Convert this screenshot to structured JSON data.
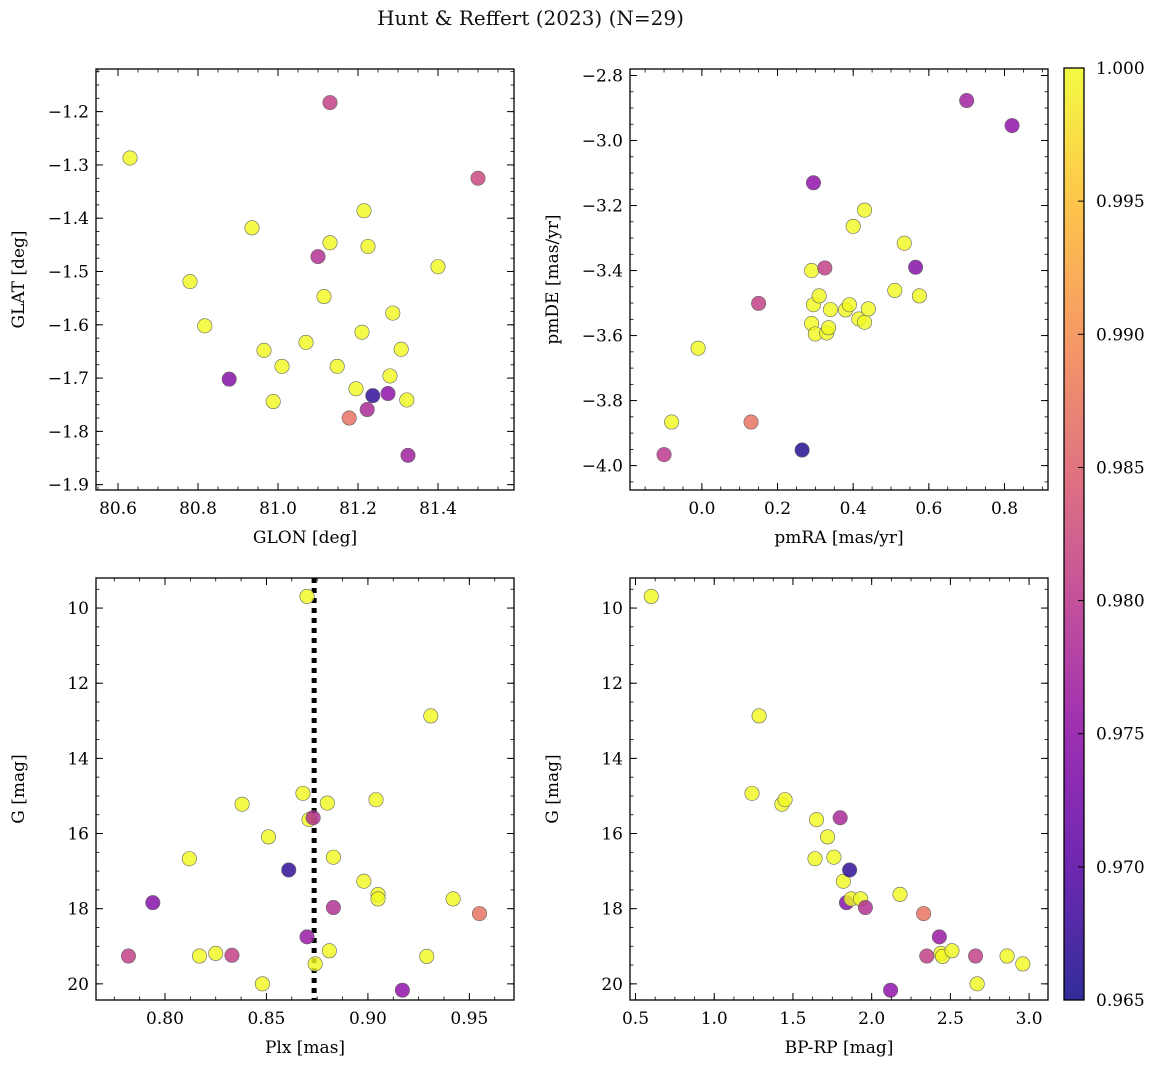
{
  "title": "Hunt & Reffert (2023) (N=29)",
  "colorbar": {
    "range": [
      0.965,
      1.0
    ],
    "ticks": [
      "0.965",
      "0.970",
      "0.975",
      "0.980",
      "0.985",
      "0.990",
      "0.995",
      "1.000"
    ],
    "colormap": "plasma"
  },
  "chart_data": [
    {
      "type": "scatter",
      "xlabel": "GLON [deg]",
      "ylabel": "GLAT [deg]",
      "xlim": [
        80.545,
        81.59
      ],
      "ylim": [
        -1.91,
        -1.12
      ],
      "xticks": [
        "80.6",
        "80.8",
        "81.0",
        "81.2",
        "81.4"
      ],
      "yticks": [
        "-1.2",
        "-1.3",
        "-1.4",
        "-1.5",
        "-1.6",
        "-1.7",
        "-1.8",
        "-1.9"
      ],
      "points": [
        [
          80.63,
          -1.287,
          1.0
        ],
        [
          80.78,
          -1.519,
          1.0
        ],
        [
          80.817,
          -1.602,
          1.0
        ],
        [
          80.878,
          -1.702,
          0.974
        ],
        [
          80.935,
          -1.418,
          1.0
        ],
        [
          80.965,
          -1.648,
          1.0
        ],
        [
          80.988,
          -1.744,
          1.0
        ],
        [
          81.01,
          -1.678,
          1.0
        ],
        [
          81.07,
          -1.633,
          1.0
        ],
        [
          81.1,
          -1.472,
          0.979
        ],
        [
          81.115,
          -1.547,
          1.0
        ],
        [
          81.13,
          -1.446,
          1.0
        ],
        [
          81.13,
          -1.183,
          0.981
        ],
        [
          81.148,
          -1.678,
          1.0
        ],
        [
          81.178,
          -1.775,
          0.987
        ],
        [
          81.195,
          -1.72,
          1.0
        ],
        [
          81.21,
          -1.614,
          1.0
        ],
        [
          81.215,
          -1.386,
          1.0
        ],
        [
          81.223,
          -1.759,
          0.978
        ],
        [
          81.225,
          -1.453,
          1.0
        ],
        [
          81.237,
          -1.733,
          0.967
        ],
        [
          81.275,
          -1.729,
          0.975
        ],
        [
          81.28,
          -1.696,
          1.0
        ],
        [
          81.287,
          -1.578,
          1.0
        ],
        [
          81.308,
          -1.646,
          1.0
        ],
        [
          81.322,
          -1.741,
          1.0
        ],
        [
          81.325,
          -1.845,
          0.977
        ],
        [
          81.4,
          -1.491,
          1.0
        ],
        [
          81.5,
          -1.325,
          0.982
        ]
      ]
    },
    {
      "type": "scatter",
      "xlabel": "pmRA [mas/yr]",
      "ylabel": "pmDE [mas/yr]",
      "xlim": [
        -0.19,
        0.915
      ],
      "ylim": [
        -4.075,
        -2.78
      ],
      "xticks": [
        "0.0",
        "0.2",
        "0.4",
        "0.6",
        "0.8"
      ],
      "yticks": [
        "-2.8",
        "-3.0",
        "-3.2",
        "-3.4",
        "-3.6",
        "-3.8",
        "-4.0"
      ],
      "points": [
        [
          -0.1,
          -3.966,
          0.98
        ],
        [
          -0.08,
          -3.866,
          1.0
        ],
        [
          -0.01,
          -3.639,
          1.0
        ],
        [
          0.13,
          -3.866,
          0.987
        ],
        [
          0.15,
          -3.501,
          0.981
        ],
        [
          0.265,
          -3.952,
          0.966
        ],
        [
          0.29,
          -3.4,
          1.0
        ],
        [
          0.29,
          -3.563,
          1.0
        ],
        [
          0.295,
          -3.13,
          0.975
        ],
        [
          0.295,
          -3.505,
          1.0
        ],
        [
          0.3,
          -3.595,
          1.0
        ],
        [
          0.31,
          -3.478,
          1.0
        ],
        [
          0.325,
          -3.392,
          0.981
        ],
        [
          0.33,
          -3.592,
          1.0
        ],
        [
          0.335,
          -3.576,
          1.0
        ],
        [
          0.34,
          -3.52,
          1.0
        ],
        [
          0.38,
          -3.521,
          1.0
        ],
        [
          0.39,
          -3.505,
          1.0
        ],
        [
          0.4,
          -3.264,
          1.0
        ],
        [
          0.415,
          -3.549,
          1.0
        ],
        [
          0.43,
          -3.214,
          1.0
        ],
        [
          0.43,
          -3.559,
          1.0
        ],
        [
          0.44,
          -3.518,
          1.0
        ],
        [
          0.51,
          -3.461,
          1.0
        ],
        [
          0.535,
          -3.316,
          1.0
        ],
        [
          0.565,
          -3.39,
          0.974
        ],
        [
          0.575,
          -3.478,
          1.0
        ],
        [
          0.7,
          -2.877,
          0.977
        ],
        [
          0.82,
          -2.954,
          0.975
        ]
      ]
    },
    {
      "type": "scatter",
      "xlabel": "Plx [mas]",
      "ylabel": "G [mag]",
      "xlim": [
        0.766,
        0.972
      ],
      "ylim": [
        20.43,
        9.2
      ],
      "y_inverted": true,
      "reference_line_x": 0.8735,
      "xticks": [
        "0.80",
        "0.85",
        "0.90",
        "0.95"
      ],
      "yticks": [
        "10",
        "12",
        "14",
        "16",
        "18",
        "20"
      ],
      "points": [
        [
          0.782,
          19.26,
          0.981
        ],
        [
          0.794,
          17.84,
          0.974
        ],
        [
          0.812,
          16.67,
          1.0
        ],
        [
          0.817,
          19.26,
          1.0
        ],
        [
          0.825,
          19.19,
          1.0
        ],
        [
          0.833,
          19.24,
          0.981
        ],
        [
          0.838,
          15.22,
          1.0
        ],
        [
          0.848,
          20.0,
          1.0
        ],
        [
          0.851,
          16.09,
          1.0
        ],
        [
          0.861,
          16.97,
          0.967
        ],
        [
          0.868,
          14.93,
          1.0
        ],
        [
          0.87,
          18.75,
          0.976
        ],
        [
          0.87,
          9.69,
          1.0
        ],
        [
          0.871,
          15.63,
          1.0
        ],
        [
          0.873,
          15.58,
          0.979
        ],
        [
          0.874,
          19.47,
          1.0
        ],
        [
          0.88,
          15.19,
          1.0
        ],
        [
          0.881,
          19.12,
          1.0
        ],
        [
          0.883,
          16.63,
          1.0
        ],
        [
          0.883,
          17.97,
          0.979
        ],
        [
          0.898,
          17.27,
          1.0
        ],
        [
          0.904,
          15.1,
          1.0
        ],
        [
          0.905,
          17.62,
          1.0
        ],
        [
          0.905,
          17.74,
          1.0
        ],
        [
          0.917,
          20.17,
          0.975
        ],
        [
          0.929,
          19.27,
          1.0
        ],
        [
          0.931,
          12.87,
          1.0
        ],
        [
          0.942,
          17.74,
          1.0
        ],
        [
          0.955,
          18.13,
          0.987
        ]
      ]
    },
    {
      "type": "scatter",
      "xlabel": "BP-RP [mag]",
      "ylabel": "G [mag]",
      "xlim": [
        0.465,
        3.12
      ],
      "ylim": [
        20.43,
        9.2
      ],
      "y_inverted": true,
      "xticks": [
        "0.5",
        "1.0",
        "1.5",
        "2.0",
        "2.5",
        "3.0"
      ],
      "yticks": [
        "10",
        "12",
        "14",
        "16",
        "18",
        "20"
      ],
      "points": [
        [
          0.6,
          9.69,
          1.0
        ],
        [
          1.24,
          14.93,
          1.0
        ],
        [
          1.285,
          12.87,
          1.0
        ],
        [
          1.43,
          15.22,
          1.0
        ],
        [
          1.45,
          15.1,
          1.0
        ],
        [
          1.64,
          16.67,
          1.0
        ],
        [
          1.65,
          15.63,
          1.0
        ],
        [
          1.72,
          16.09,
          1.0
        ],
        [
          1.76,
          16.63,
          1.0
        ],
        [
          1.8,
          15.58,
          0.978
        ],
        [
          1.82,
          17.27,
          1.0
        ],
        [
          1.84,
          17.84,
          0.974
        ],
        [
          1.86,
          16.97,
          0.967
        ],
        [
          1.87,
          17.74,
          1.0
        ],
        [
          1.93,
          17.74,
          1.0
        ],
        [
          1.96,
          17.97,
          0.979
        ],
        [
          2.12,
          20.17,
          0.975
        ],
        [
          2.18,
          17.62,
          1.0
        ],
        [
          2.33,
          18.13,
          0.987
        ],
        [
          2.35,
          19.26,
          0.981
        ],
        [
          2.43,
          18.75,
          0.976
        ],
        [
          2.44,
          19.19,
          1.0
        ],
        [
          2.45,
          19.27,
          1.0
        ],
        [
          2.51,
          19.12,
          1.0
        ],
        [
          2.66,
          19.26,
          0.981
        ],
        [
          2.67,
          20.0,
          1.0
        ],
        [
          2.86,
          19.26,
          1.0
        ],
        [
          2.96,
          19.47,
          1.0
        ]
      ]
    }
  ]
}
